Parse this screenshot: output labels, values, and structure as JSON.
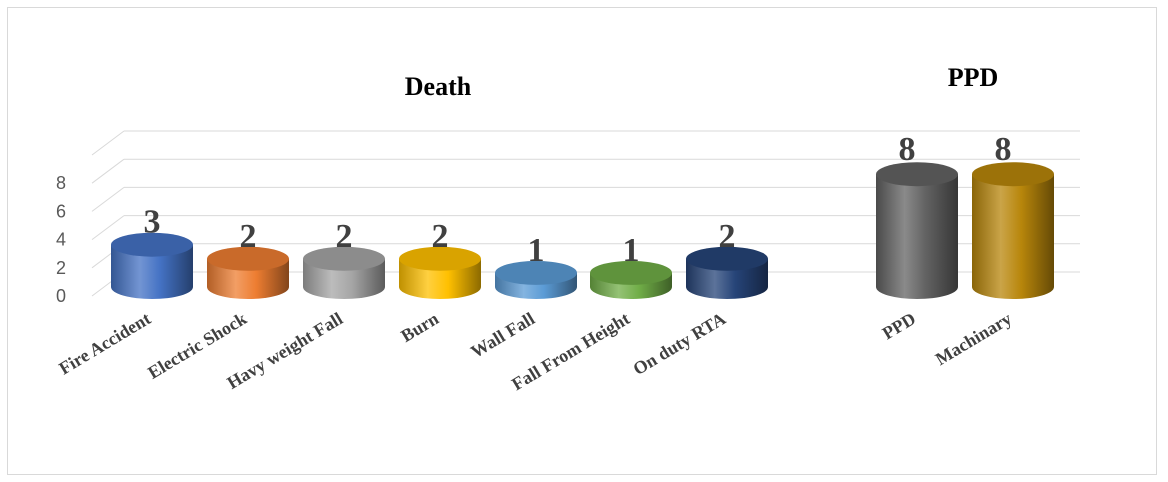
{
  "chart_data": [
    {
      "type": "bar",
      "title": "Death",
      "categories": [
        "Fire Accident",
        "Electric Shock",
        "Havy weight Fall",
        "Burn",
        "Wall Fall",
        "Fall From Height",
        "On duty RTA"
      ],
      "values": [
        3,
        2,
        2,
        2,
        1,
        1,
        2
      ],
      "colors": [
        "#4472c4",
        "#ed7d31",
        "#a5a5a5",
        "#ffc000",
        "#5b9bd5",
        "#70ad47",
        "#264478"
      ],
      "yticks": [
        0,
        2,
        4,
        6,
        8
      ],
      "ylim": [
        0,
        8
      ],
      "grid": true,
      "style": "3d-cylinder"
    },
    {
      "type": "bar",
      "title": "PPD",
      "categories": [
        "PPD",
        "Machinary"
      ],
      "values": [
        8,
        8
      ],
      "colors": [
        "#636363",
        "#b8860b"
      ],
      "ylim": [
        0,
        8
      ],
      "grid": true,
      "style": "3d-cylinder"
    }
  ]
}
